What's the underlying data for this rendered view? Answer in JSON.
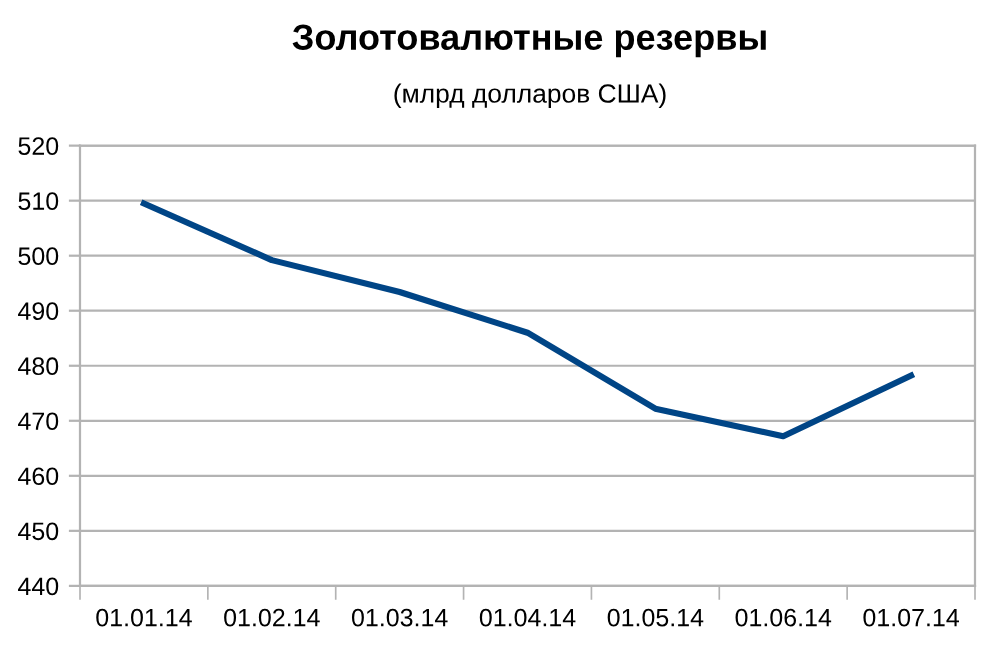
{
  "chart_data": {
    "type": "line",
    "title": "Золотовалютные резервы",
    "subtitle": "(млрд долларов США)",
    "categories": [
      "01.01.14",
      "01.02.14",
      "01.03.14",
      "01.04.14",
      "01.05.14",
      "01.06.14",
      "01.07.14"
    ],
    "series": [
      {
        "color": "#004586",
        "values": [
          509.5,
          499.2,
          493.4,
          486,
          472.2,
          467.2,
          478.2
        ]
      }
    ],
    "ylim": [
      440,
      520
    ],
    "yticks": [
      440,
      450,
      460,
      470,
      480,
      490,
      500,
      510,
      520
    ],
    "grid": "y",
    "line_style": "solid"
  }
}
